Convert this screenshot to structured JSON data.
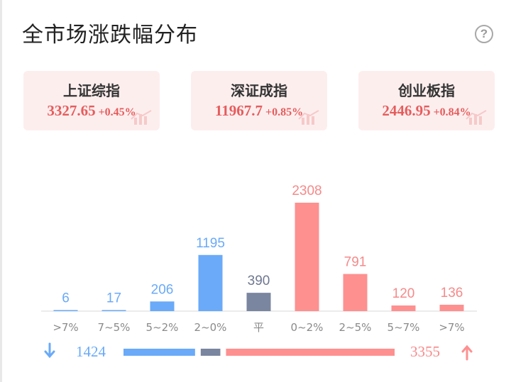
{
  "header": {
    "title": "全市场涨跌幅分布",
    "help_icon": "question-circle-icon",
    "help_glyph": "?"
  },
  "indices": [
    {
      "name": "上证综指",
      "price": "3327.65",
      "change": "+0.45%"
    },
    {
      "name": "深证成指",
      "price": "11967.7",
      "change": "+0.85%"
    },
    {
      "name": "创业板指",
      "price": "2446.95",
      "change": "+0.84%"
    }
  ],
  "chart_data": {
    "type": "bar",
    "categories": [
      ">7%",
      "7~5%",
      "5~2%",
      "2~0%",
      "平",
      "0~2%",
      "2~5%",
      "5~7%",
      ">7%"
    ],
    "values": [
      6,
      17,
      206,
      1195,
      390,
      2308,
      791,
      120,
      136
    ],
    "groups": [
      "down",
      "down",
      "down",
      "down",
      "flat",
      "up",
      "up",
      "up",
      "up"
    ],
    "colors": {
      "down": "#6aaaf8",
      "flat": "#7a859f",
      "up": "#fe9090",
      "label_down": "#6aaaf8",
      "label_flat": "#6f7890",
      "label_up": "#f58a8a",
      "tick": "#8a8a8a"
    },
    "ylim": [
      0,
      2308
    ]
  },
  "summary": {
    "down_count": 1424,
    "flat_count": 390,
    "up_count": 3355,
    "down_icon": "arrow-down-icon",
    "up_icon": "arrow-up-icon"
  }
}
